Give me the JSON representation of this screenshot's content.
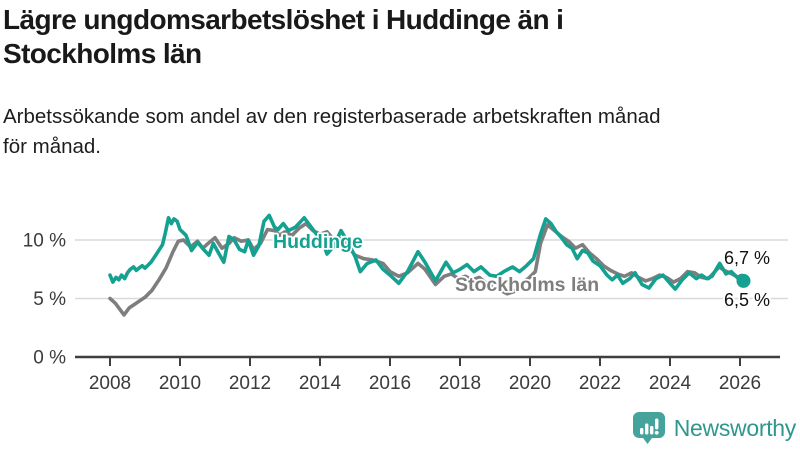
{
  "header": {
    "title_lines": [
      "Lägre ungdomsarbetslöshet i Huddinge än i",
      "Stockholms län"
    ],
    "subtitle_lines": [
      "Arbetssökande som andel av den registerbaserade arbetskraften månad",
      "för månad."
    ]
  },
  "footer": {
    "brand": "Newsworthy"
  },
  "chart_data": {
    "type": "line",
    "title": "Lägre ungdomsarbetslöshet i Huddinge än i Stockholms län",
    "subtitle": "Arbetssökande som andel av den registerbaserade arbetskraften månad för månad.",
    "unit": "%",
    "x_ticks": [
      2008,
      2010,
      2012,
      2014,
      2016,
      2018,
      2020,
      2022,
      2024,
      2026
    ],
    "y_ticks": [
      {
        "value": 0,
        "label": "0 %"
      },
      {
        "value": 5,
        "label": "5 %"
      },
      {
        "value": 10,
        "label": "10 %"
      }
    ],
    "x_range": [
      2008,
      2026.2
    ],
    "y_range": [
      0,
      12.5
    ],
    "grid": true,
    "legend_position": "inline-labels",
    "colors": {
      "grid": "#d9d9d9",
      "axis": "#3f3f3f",
      "tick_text": "#3b3b3b"
    },
    "series": [
      {
        "key": "stockholm",
        "name": "Stockholms län",
        "color": "#7e7e7e",
        "end_label": "6,7 %",
        "end_value": 6.7,
        "points": [
          [
            2008.0,
            5.0
          ],
          [
            2008.15,
            4.6
          ],
          [
            2008.3,
            4.0
          ],
          [
            2008.4,
            3.6
          ],
          [
            2008.55,
            4.2
          ],
          [
            2008.7,
            4.5
          ],
          [
            2008.85,
            4.8
          ],
          [
            2009.0,
            5.1
          ],
          [
            2009.2,
            5.7
          ],
          [
            2009.4,
            6.6
          ],
          [
            2009.6,
            7.6
          ],
          [
            2009.8,
            9.0
          ],
          [
            2009.95,
            9.9
          ],
          [
            2010.1,
            10.0
          ],
          [
            2010.3,
            9.4
          ],
          [
            2010.5,
            9.9
          ],
          [
            2010.65,
            9.3
          ],
          [
            2010.8,
            9.7
          ],
          [
            2011.0,
            10.2
          ],
          [
            2011.2,
            9.3
          ],
          [
            2011.4,
            9.7
          ],
          [
            2011.55,
            10.2
          ],
          [
            2011.75,
            9.9
          ],
          [
            2011.95,
            10.0
          ],
          [
            2012.1,
            9.2
          ],
          [
            2012.3,
            9.7
          ],
          [
            2012.5,
            10.9
          ],
          [
            2012.7,
            10.8
          ],
          [
            2012.85,
            10.4
          ],
          [
            2013.0,
            10.7
          ],
          [
            2013.2,
            10.4
          ],
          [
            2013.4,
            11.0
          ],
          [
            2013.6,
            11.4
          ],
          [
            2013.8,
            10.8
          ],
          [
            2014.0,
            10.5
          ],
          [
            2014.2,
            10.7
          ],
          [
            2014.4,
            10.0
          ],
          [
            2014.6,
            10.1
          ],
          [
            2014.8,
            9.5
          ],
          [
            2015.0,
            8.7
          ],
          [
            2015.25,
            8.4
          ],
          [
            2015.5,
            8.3
          ],
          [
            2015.8,
            8.0
          ],
          [
            2016.0,
            7.3
          ],
          [
            2016.25,
            6.9
          ],
          [
            2016.5,
            7.2
          ],
          [
            2016.8,
            8.0
          ],
          [
            2017.0,
            7.5
          ],
          [
            2017.3,
            6.2
          ],
          [
            2017.55,
            6.9
          ],
          [
            2017.75,
            7.1
          ],
          [
            2017.95,
            6.7
          ],
          [
            2018.15,
            6.9
          ],
          [
            2018.35,
            6.6
          ],
          [
            2018.55,
            6.8
          ],
          [
            2018.75,
            6.3
          ],
          [
            2018.95,
            6.1
          ],
          [
            2019.15,
            5.7
          ],
          [
            2019.35,
            5.4
          ],
          [
            2019.55,
            5.6
          ],
          [
            2019.75,
            6.3
          ],
          [
            2019.95,
            6.7
          ],
          [
            2020.15,
            7.3
          ],
          [
            2020.3,
            9.7
          ],
          [
            2020.5,
            11.3
          ],
          [
            2020.7,
            10.8
          ],
          [
            2020.9,
            10.3
          ],
          [
            2021.1,
            9.9
          ],
          [
            2021.3,
            9.3
          ],
          [
            2021.5,
            9.6
          ],
          [
            2021.7,
            8.9
          ],
          [
            2021.9,
            8.4
          ],
          [
            2022.1,
            7.8
          ],
          [
            2022.3,
            7.4
          ],
          [
            2022.5,
            7.1
          ],
          [
            2022.7,
            6.9
          ],
          [
            2022.9,
            7.2
          ],
          [
            2023.1,
            6.8
          ],
          [
            2023.3,
            6.5
          ],
          [
            2023.5,
            6.7
          ],
          [
            2023.7,
            7.0
          ],
          [
            2023.9,
            6.8
          ],
          [
            2024.1,
            6.4
          ],
          [
            2024.3,
            6.7
          ],
          [
            2024.5,
            7.3
          ],
          [
            2024.7,
            7.2
          ],
          [
            2024.9,
            6.8
          ],
          [
            2025.1,
            6.7
          ],
          [
            2025.25,
            7.2
          ],
          [
            2025.4,
            7.7
          ],
          [
            2025.55,
            7.4
          ],
          [
            2025.7,
            7.2
          ],
          [
            2025.9,
            6.9
          ],
          [
            2026.05,
            6.7
          ]
        ]
      },
      {
        "key": "huddinge",
        "name": "Huddinge",
        "color": "#14a191",
        "end_label": "6,5 %",
        "end_value": 6.5,
        "points": [
          [
            2008.0,
            7.0
          ],
          [
            2008.08,
            6.4
          ],
          [
            2008.17,
            6.8
          ],
          [
            2008.25,
            6.6
          ],
          [
            2008.33,
            7.0
          ],
          [
            2008.42,
            6.7
          ],
          [
            2008.5,
            7.2
          ],
          [
            2008.58,
            7.5
          ],
          [
            2008.67,
            7.7
          ],
          [
            2008.75,
            7.4
          ],
          [
            2008.83,
            7.6
          ],
          [
            2008.92,
            7.8
          ],
          [
            2009.0,
            7.6
          ],
          [
            2009.17,
            8.1
          ],
          [
            2009.33,
            8.8
          ],
          [
            2009.5,
            9.6
          ],
          [
            2009.58,
            10.6
          ],
          [
            2009.67,
            11.9
          ],
          [
            2009.75,
            11.4
          ],
          [
            2009.83,
            11.8
          ],
          [
            2009.92,
            11.6
          ],
          [
            2010.0,
            10.9
          ],
          [
            2010.17,
            10.4
          ],
          [
            2010.33,
            9.1
          ],
          [
            2010.5,
            9.8
          ],
          [
            2010.67,
            9.2
          ],
          [
            2010.83,
            8.7
          ],
          [
            2010.95,
            9.7
          ],
          [
            2011.1,
            8.9
          ],
          [
            2011.25,
            8.1
          ],
          [
            2011.4,
            10.3
          ],
          [
            2011.55,
            10.0
          ],
          [
            2011.7,
            9.2
          ],
          [
            2011.85,
            9.0
          ],
          [
            2011.95,
            10.0
          ],
          [
            2012.1,
            8.7
          ],
          [
            2012.25,
            9.5
          ],
          [
            2012.4,
            11.6
          ],
          [
            2012.55,
            12.1
          ],
          [
            2012.7,
            11.1
          ],
          [
            2012.8,
            10.9
          ],
          [
            2012.95,
            11.4
          ],
          [
            2013.1,
            10.8
          ],
          [
            2013.3,
            11.1
          ],
          [
            2013.55,
            11.9
          ],
          [
            2013.7,
            11.3
          ],
          [
            2013.9,
            10.5
          ],
          [
            2014.05,
            10.1
          ],
          [
            2014.2,
            8.8
          ],
          [
            2014.4,
            9.5
          ],
          [
            2014.6,
            10.8
          ],
          [
            2014.8,
            9.8
          ],
          [
            2015.0,
            8.6
          ],
          [
            2015.15,
            7.3
          ],
          [
            2015.35,
            8.0
          ],
          [
            2015.6,
            8.3
          ],
          [
            2015.8,
            7.5
          ],
          [
            2016.0,
            7.0
          ],
          [
            2016.25,
            6.3
          ],
          [
            2016.5,
            7.3
          ],
          [
            2016.8,
            9.0
          ],
          [
            2017.0,
            8.1
          ],
          [
            2017.3,
            6.5
          ],
          [
            2017.6,
            8.1
          ],
          [
            2017.8,
            7.2
          ],
          [
            2018.0,
            7.5
          ],
          [
            2018.2,
            7.9
          ],
          [
            2018.4,
            7.3
          ],
          [
            2018.6,
            7.7
          ],
          [
            2018.85,
            7.0
          ],
          [
            2019.05,
            6.9
          ],
          [
            2019.25,
            7.3
          ],
          [
            2019.5,
            7.7
          ],
          [
            2019.7,
            7.3
          ],
          [
            2019.9,
            7.8
          ],
          [
            2020.1,
            8.4
          ],
          [
            2020.3,
            10.5
          ],
          [
            2020.45,
            11.8
          ],
          [
            2020.6,
            11.4
          ],
          [
            2020.75,
            10.7
          ],
          [
            2020.9,
            10.2
          ],
          [
            2021.05,
            9.6
          ],
          [
            2021.2,
            9.3
          ],
          [
            2021.35,
            8.4
          ],
          [
            2021.5,
            9.1
          ],
          [
            2021.65,
            8.9
          ],
          [
            2021.8,
            8.2
          ],
          [
            2022.0,
            7.8
          ],
          [
            2022.2,
            7.0
          ],
          [
            2022.35,
            6.6
          ],
          [
            2022.5,
            7.0
          ],
          [
            2022.65,
            6.3
          ],
          [
            2022.85,
            6.7
          ],
          [
            2023.0,
            7.2
          ],
          [
            2023.2,
            6.2
          ],
          [
            2023.4,
            5.9
          ],
          [
            2023.6,
            6.7
          ],
          [
            2023.8,
            7.0
          ],
          [
            2024.0,
            6.3
          ],
          [
            2024.15,
            5.8
          ],
          [
            2024.35,
            6.6
          ],
          [
            2024.55,
            7.2
          ],
          [
            2024.75,
            6.7
          ],
          [
            2024.9,
            7.0
          ],
          [
            2025.05,
            6.7
          ],
          [
            2025.2,
            6.9
          ],
          [
            2025.42,
            8.0
          ],
          [
            2025.6,
            7.1
          ],
          [
            2025.75,
            7.3
          ],
          [
            2025.95,
            6.7
          ],
          [
            2026.1,
            6.5
          ]
        ]
      }
    ]
  }
}
